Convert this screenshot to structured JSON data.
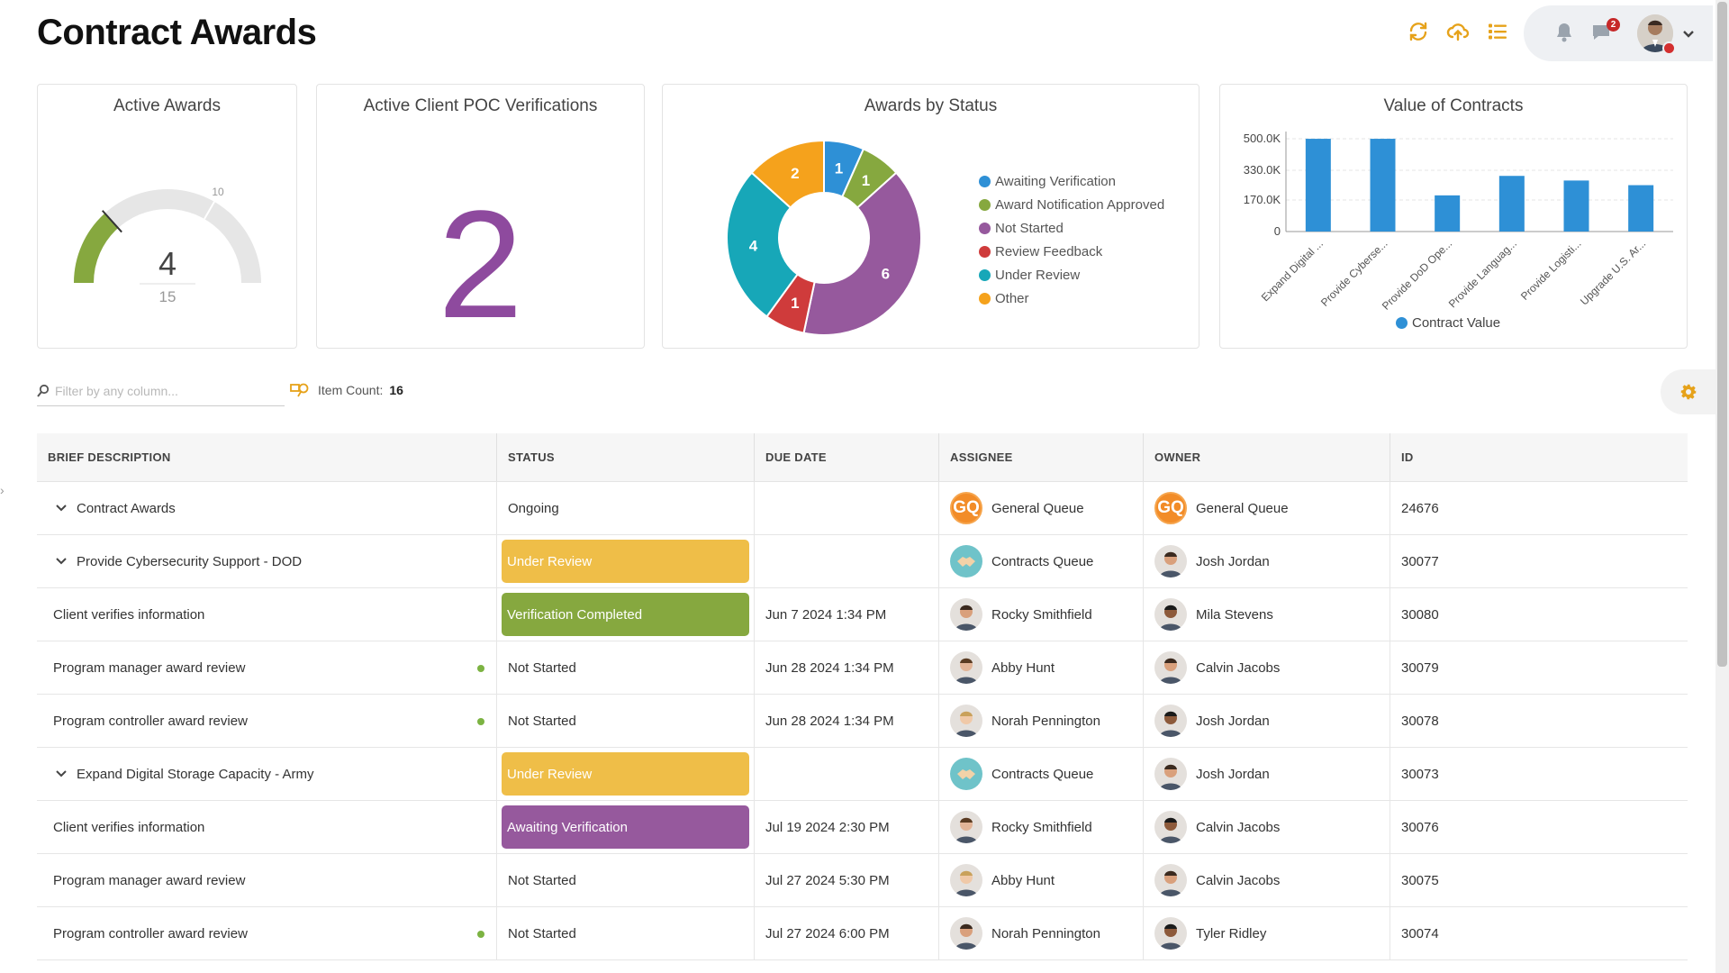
{
  "page": {
    "title": "Contract Awards"
  },
  "header": {
    "tools": [
      "refresh-icon",
      "upload-cloud-icon",
      "list-view-icon"
    ],
    "message_badge": "2"
  },
  "cards": {
    "active_awards": {
      "title": "Active Awards",
      "value": "4",
      "max": "15",
      "threshold": "10",
      "accent": "#86a83f"
    },
    "poc": {
      "title": "Active Client POC Verifications",
      "value": "2",
      "color": "#8e4a9e"
    },
    "awards_by_status": {
      "title": "Awards by Status"
    },
    "value_of_contracts": {
      "title": "Value of Contracts"
    }
  },
  "chart_data": [
    {
      "type": "pie",
      "title": "Awards by Status",
      "legend_position": "right",
      "slices": [
        {
          "label": "Awaiting Verification",
          "value": 1,
          "color": "#2e90d6"
        },
        {
          "label": "Award Notification Approved",
          "value": 1,
          "color": "#86a83f"
        },
        {
          "label": "Not Started",
          "value": 6,
          "color": "#96599d"
        },
        {
          "label": "Review Feedback",
          "value": 1,
          "color": "#cf3b3b"
        },
        {
          "label": "Under Review",
          "value": 4,
          "color": "#17a7b8"
        },
        {
          "label": "Other",
          "value": 2,
          "color": "#f5a21c"
        }
      ]
    },
    {
      "type": "bar",
      "title": "Value of Contracts",
      "categories": [
        "Expand Digital ...",
        "Provide Cyberse...",
        "Provide DoD Ope...",
        "Provide Languag...",
        "Provide Logisti...",
        "Upgrade U.S. Ar..."
      ],
      "series": [
        {
          "name": "Contract Value",
          "values": [
            500000,
            500000,
            195000,
            300000,
            275000,
            250000
          ],
          "color": "#2e90d6"
        }
      ],
      "ylim": [
        0,
        510000
      ],
      "yticks": [
        0,
        170000,
        330000,
        500000
      ],
      "ytick_labels": [
        "0",
        "170.0K",
        "330.0K",
        "500.0K"
      ],
      "grid": true,
      "legend_position": "bottom"
    }
  ],
  "toolbar": {
    "filter_placeholder": "Filter by any column...",
    "item_count_label": "Item Count:",
    "item_count": "16"
  },
  "table": {
    "headers": [
      "BRIEF DESCRIPTION",
      "STATUS",
      "DUE DATE",
      "ASSIGNEE",
      "OWNER",
      "ID"
    ],
    "rows": [
      {
        "level": 0,
        "expandable": true,
        "desc": "Contract Awards",
        "status": "Ongoing",
        "status_style": "plain",
        "due": "",
        "assignee": "General Queue",
        "assignee_avatar": "gq",
        "owner": "General Queue",
        "owner_avatar": "gq",
        "id": "24676",
        "dot": false
      },
      {
        "level": 1,
        "expandable": true,
        "desc": "Provide Cybersecurity Support - DOD",
        "status": "Under Review",
        "status_style": "review",
        "due": "",
        "assignee": "Contracts Queue",
        "assignee_avatar": "queue",
        "owner": "Josh Jordan",
        "owner_avatar": "person",
        "id": "30077",
        "dot": false
      },
      {
        "level": 2,
        "expandable": false,
        "desc": "Client verifies information",
        "status": "Verification Completed",
        "status_style": "completed",
        "due": "Jun 7 2024 1:34 PM",
        "assignee": "Rocky Smithfield",
        "assignee_avatar": "person",
        "owner": "Mila Stevens",
        "owner_avatar": "person",
        "id": "30080",
        "dot": false
      },
      {
        "level": 2,
        "expandable": false,
        "desc": "Program manager award review",
        "status": "Not Started",
        "status_style": "plain",
        "due": "Jun 28 2024 1:34 PM",
        "assignee": "Abby Hunt",
        "assignee_avatar": "person",
        "owner": "Calvin Jacobs",
        "owner_avatar": "person",
        "id": "30079",
        "dot": true
      },
      {
        "level": 2,
        "expandable": false,
        "desc": "Program controller award review",
        "status": "Not Started",
        "status_style": "plain",
        "due": "Jun 28 2024 1:34 PM",
        "assignee": "Norah Pennington",
        "assignee_avatar": "person",
        "owner": "Josh Jordan",
        "owner_avatar": "person",
        "id": "30078",
        "dot": true
      },
      {
        "level": 1,
        "expandable": true,
        "desc": "Expand Digital Storage Capacity - Army",
        "status": "Under Review",
        "status_style": "review",
        "due": "",
        "assignee": "Contracts Queue",
        "assignee_avatar": "queue",
        "owner": "Josh Jordan",
        "owner_avatar": "person",
        "id": "30073",
        "dot": false
      },
      {
        "level": 2,
        "expandable": false,
        "desc": "Client verifies information",
        "status": "Awaiting Verification",
        "status_style": "awaiting",
        "due": "Jul 19 2024 2:30 PM",
        "assignee": "Rocky Smithfield",
        "assignee_avatar": "person",
        "owner": "Calvin Jacobs",
        "owner_avatar": "person",
        "id": "30076",
        "dot": false
      },
      {
        "level": 2,
        "expandable": false,
        "desc": "Program manager award review",
        "status": "Not Started",
        "status_style": "plain",
        "due": "Jul 27 2024 5:30 PM",
        "assignee": "Abby Hunt",
        "assignee_avatar": "person",
        "owner": "Calvin Jacobs",
        "owner_avatar": "person",
        "id": "30075",
        "dot": false
      },
      {
        "level": 2,
        "expandable": false,
        "desc": "Program controller award review",
        "status": "Not Started",
        "status_style": "plain",
        "due": "Jul 27 2024 6:00 PM",
        "assignee": "Norah Pennington",
        "assignee_avatar": "person",
        "owner": "Tyler Ridley",
        "owner_avatar": "person",
        "id": "30074",
        "dot": true
      }
    ]
  }
}
